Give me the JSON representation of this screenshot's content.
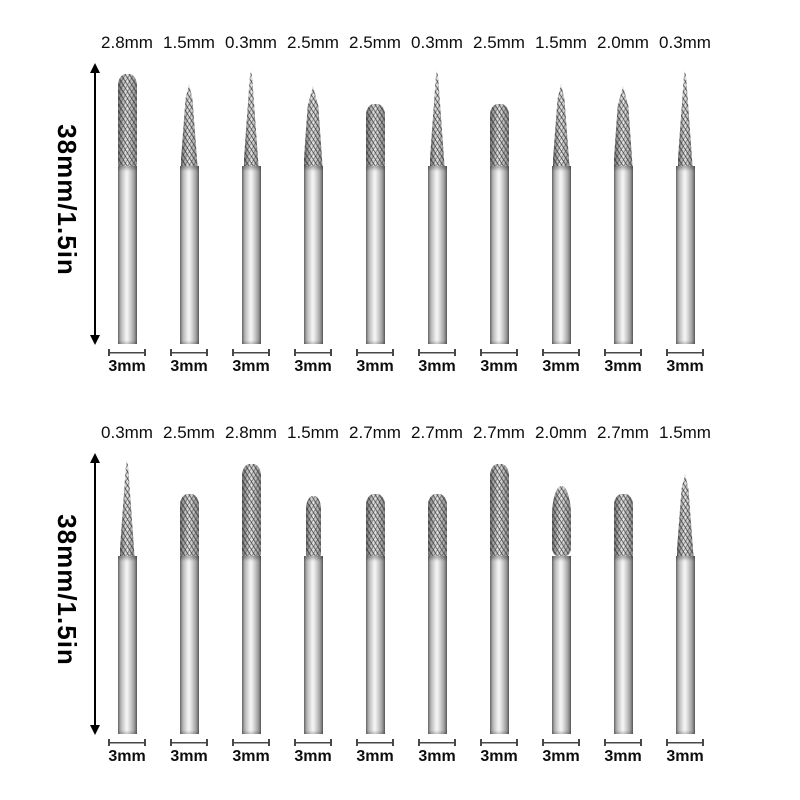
{
  "colors": {
    "background": "#ffffff",
    "text": "#111111",
    "metal_light": "#f5f5f5",
    "metal_dark": "#6e6e6e",
    "arrow": "#000000"
  },
  "rows": [
    {
      "name": "top",
      "length_label": "38mm/1.5in",
      "bits": [
        {
          "head_size": "2.8mm",
          "shank_size": "3mm",
          "shape": "cyl-long"
        },
        {
          "head_size": "1.5mm",
          "shank_size": "3mm",
          "shape": "taper"
        },
        {
          "head_size": "0.3mm",
          "shank_size": "3mm",
          "shape": "cone"
        },
        {
          "head_size": "2.5mm",
          "shank_size": "3mm",
          "shape": "taper-wide"
        },
        {
          "head_size": "2.5mm",
          "shank_size": "3mm",
          "shape": "cylinder"
        },
        {
          "head_size": "0.3mm",
          "shank_size": "3mm",
          "shape": "cone"
        },
        {
          "head_size": "2.5mm",
          "shank_size": "3mm",
          "shape": "cylinder"
        },
        {
          "head_size": "1.5mm",
          "shank_size": "3mm",
          "shape": "taper"
        },
        {
          "head_size": "2.0mm",
          "shank_size": "3mm",
          "shape": "taper-wide"
        },
        {
          "head_size": "0.3mm",
          "shank_size": "3mm",
          "shape": "cone"
        }
      ]
    },
    {
      "name": "bottom",
      "length_label": "38mm/1.5in",
      "bits": [
        {
          "head_size": "0.3mm",
          "shank_size": "3mm",
          "shape": "cone"
        },
        {
          "head_size": "2.5mm",
          "shank_size": "3mm",
          "shape": "cylinder"
        },
        {
          "head_size": "2.8mm",
          "shank_size": "3mm",
          "shape": "cyl-long"
        },
        {
          "head_size": "1.5mm",
          "shank_size": "3mm",
          "shape": "cyl-narrow"
        },
        {
          "head_size": "2.7mm",
          "shank_size": "3mm",
          "shape": "cylinder"
        },
        {
          "head_size": "2.7mm",
          "shank_size": "3mm",
          "shape": "cylinder"
        },
        {
          "head_size": "2.7mm",
          "shank_size": "3mm",
          "shape": "cyl-long"
        },
        {
          "head_size": "2.0mm",
          "shank_size": "3mm",
          "shape": "flame"
        },
        {
          "head_size": "2.7mm",
          "shank_size": "3mm",
          "shape": "cylinder"
        },
        {
          "head_size": "1.5mm",
          "shank_size": "3mm",
          "shape": "taper"
        }
      ]
    }
  ]
}
